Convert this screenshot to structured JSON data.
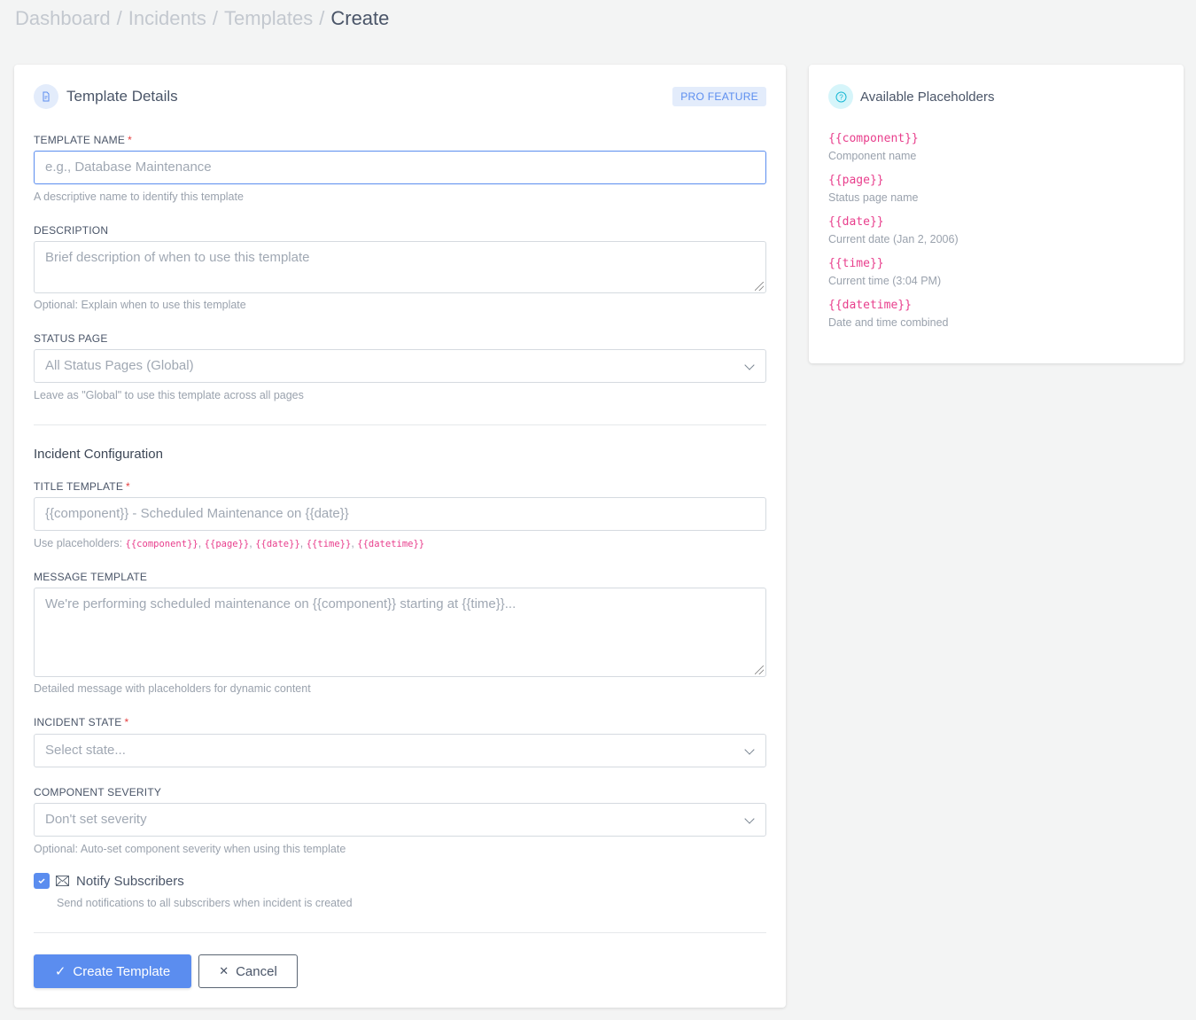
{
  "breadcrumb": [
    "Dashboard",
    "Incidents",
    "Templates",
    "Create"
  ],
  "template_details": {
    "title": "Template Details",
    "badge": "PRO FEATURE",
    "name": {
      "label": "TEMPLATE NAME",
      "placeholder": "e.g., Database Maintenance",
      "hint": "A descriptive name to identify this template"
    },
    "description": {
      "label": "DESCRIPTION",
      "placeholder": "Brief description of when to use this template",
      "hint": "Optional: Explain when to use this template"
    },
    "status_page": {
      "label": "STATUS PAGE",
      "value": "All Status Pages (Global)",
      "hint": "Leave as \"Global\" to use this template across all pages"
    },
    "section": "Incident Configuration",
    "title_template": {
      "label": "TITLE TEMPLATE",
      "placeholder": "{{component}} - Scheduled Maintenance on {{date}}",
      "hint_prefix": "Use placeholders: ",
      "hint_codes": [
        "{{component}}",
        "{{page}}",
        "{{date}}",
        "{{time}}",
        "{{datetime}}"
      ]
    },
    "message_template": {
      "label": "MESSAGE TEMPLATE",
      "placeholder": "We're performing scheduled maintenance on {{component}} starting at {{time}}...",
      "hint": "Detailed message with placeholders for dynamic content"
    },
    "incident_state": {
      "label": "INCIDENT STATE",
      "value": "Select state..."
    },
    "component_severity": {
      "label": "COMPONENT SEVERITY",
      "value": "Don't set severity",
      "hint": "Optional: Auto-set component severity when using this template"
    },
    "notify": {
      "label": "Notify Subscribers",
      "checked": true,
      "hint": "Send notifications to all subscribers when incident is created"
    },
    "create_label": "Create Template",
    "cancel_label": "Cancel"
  },
  "placeholders": {
    "title": "Available Placeholders",
    "items": [
      {
        "code": "{{component}}",
        "desc": "Component name"
      },
      {
        "code": "{{page}}",
        "desc": "Status page name"
      },
      {
        "code": "{{date}}",
        "desc": "Current date (Jan 2, 2006)"
      },
      {
        "code": "{{time}}",
        "desc": "Current time (3:04 PM)"
      },
      {
        "code": "{{datetime}}",
        "desc": "Date and time combined"
      }
    ]
  },
  "colors": {
    "accent": "#5b8def",
    "code": "#e83e8c",
    "required": "#e53e3e"
  }
}
